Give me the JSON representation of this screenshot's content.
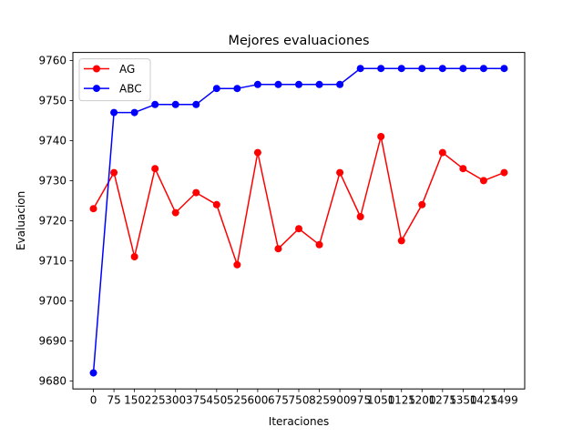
{
  "chart_data": {
    "type": "line",
    "title": "Mejores evaluaciones",
    "xlabel": "Iteraciones",
    "ylabel": "Evaluacion",
    "categories": [
      "0",
      "75",
      "150",
      "225",
      "300",
      "375",
      "450",
      "525",
      "600",
      "675",
      "750",
      "825",
      "900",
      "975",
      "1050",
      "1125",
      "1200",
      "1275",
      "1350",
      "1425",
      "1499"
    ],
    "ylim": [
      9678,
      9762
    ],
    "yticks": [
      9680,
      9690,
      9700,
      9710,
      9720,
      9730,
      9740,
      9750,
      9760
    ],
    "grid": false,
    "legend_position": "top-left",
    "series": [
      {
        "name": "AG",
        "color": "#ff0000",
        "marker": "circle",
        "values": [
          9723,
          9732,
          9711,
          9733,
          9722,
          9727,
          9724,
          9709,
          9737,
          9713,
          9718,
          9714,
          9732,
          9721,
          9741,
          9715,
          9724,
          9737,
          9733,
          9730,
          9732
        ]
      },
      {
        "name": "ABC",
        "color": "#0000ff",
        "marker": "circle",
        "values": [
          9682,
          9747,
          9747,
          9749,
          9749,
          9749,
          9753,
          9753,
          9754,
          9754,
          9754,
          9754,
          9754,
          9758,
          9758,
          9758,
          9758,
          9758,
          9758,
          9758,
          9758
        ]
      }
    ]
  }
}
